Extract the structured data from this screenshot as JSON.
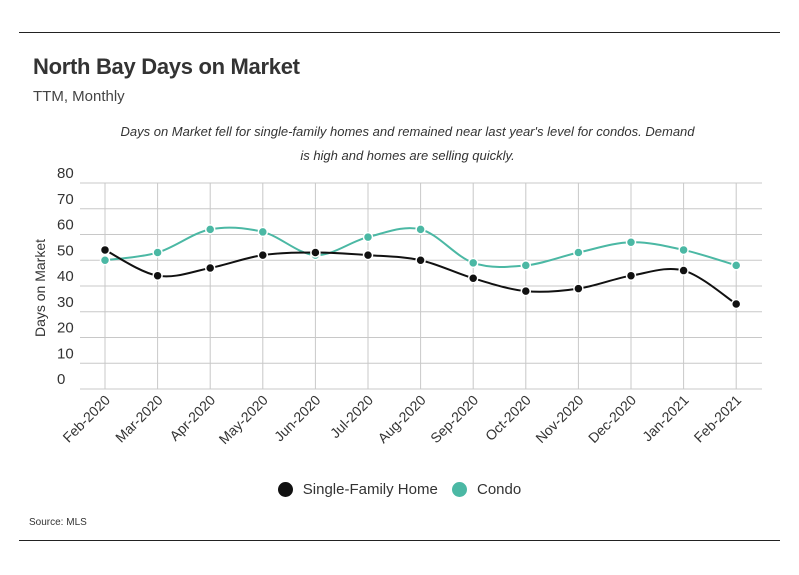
{
  "header": {
    "title": "North Bay Days on Market",
    "subtitle": "TTM, Monthly"
  },
  "annotation": "Days on Market fell for single-family homes and remained near last year's level for condos. Demand is high and homes are selling quickly.",
  "source": "Source:  MLS",
  "colors": {
    "single_family": "#111111",
    "condo": "#4bb8a4",
    "grid": "#c8c8c8"
  },
  "chart_data": {
    "type": "line",
    "ylabel": "Days on Market",
    "xlabel": "",
    "ylim": [
      0,
      80
    ],
    "yticks": [
      0,
      10,
      20,
      30,
      40,
      50,
      60,
      70,
      80
    ],
    "grid": true,
    "legend_position": "bottom",
    "categories": [
      "Feb-2020",
      "Mar-2020",
      "Apr-2020",
      "May-2020",
      "Jun-2020",
      "Jul-2020",
      "Aug-2020",
      "Sep-2020",
      "Oct-2020",
      "Nov-2020",
      "Dec-2020",
      "Jan-2021",
      "Feb-2021"
    ],
    "series": [
      {
        "name": "Single-Family Home",
        "color": "#111111",
        "values": [
          54,
          44,
          47,
          52,
          53,
          52,
          50,
          43,
          38,
          39,
          44,
          46,
          33
        ]
      },
      {
        "name": "Condo",
        "color": "#4bb8a4",
        "values": [
          50,
          53,
          62,
          61,
          52,
          59,
          62,
          49,
          48,
          53,
          57,
          54,
          48
        ]
      }
    ]
  }
}
